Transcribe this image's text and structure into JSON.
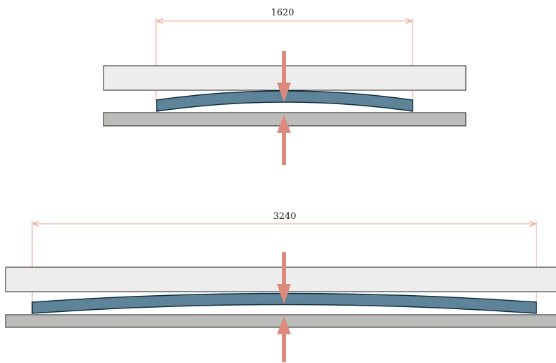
{
  "colors": {
    "dimension": "#e8a396",
    "arrow": "#dd8a7c",
    "upper_plate": "#eeeded",
    "lower_plate": "#bcbcba",
    "plate_stroke": "#1e1e1e",
    "beam_fill": "#5f849a",
    "beam_stroke": "#0f2f40"
  },
  "figures": [
    {
      "id": "short-span",
      "dimension_label": "1620"
    },
    {
      "id": "long-span",
      "dimension_label": "3240"
    }
  ]
}
